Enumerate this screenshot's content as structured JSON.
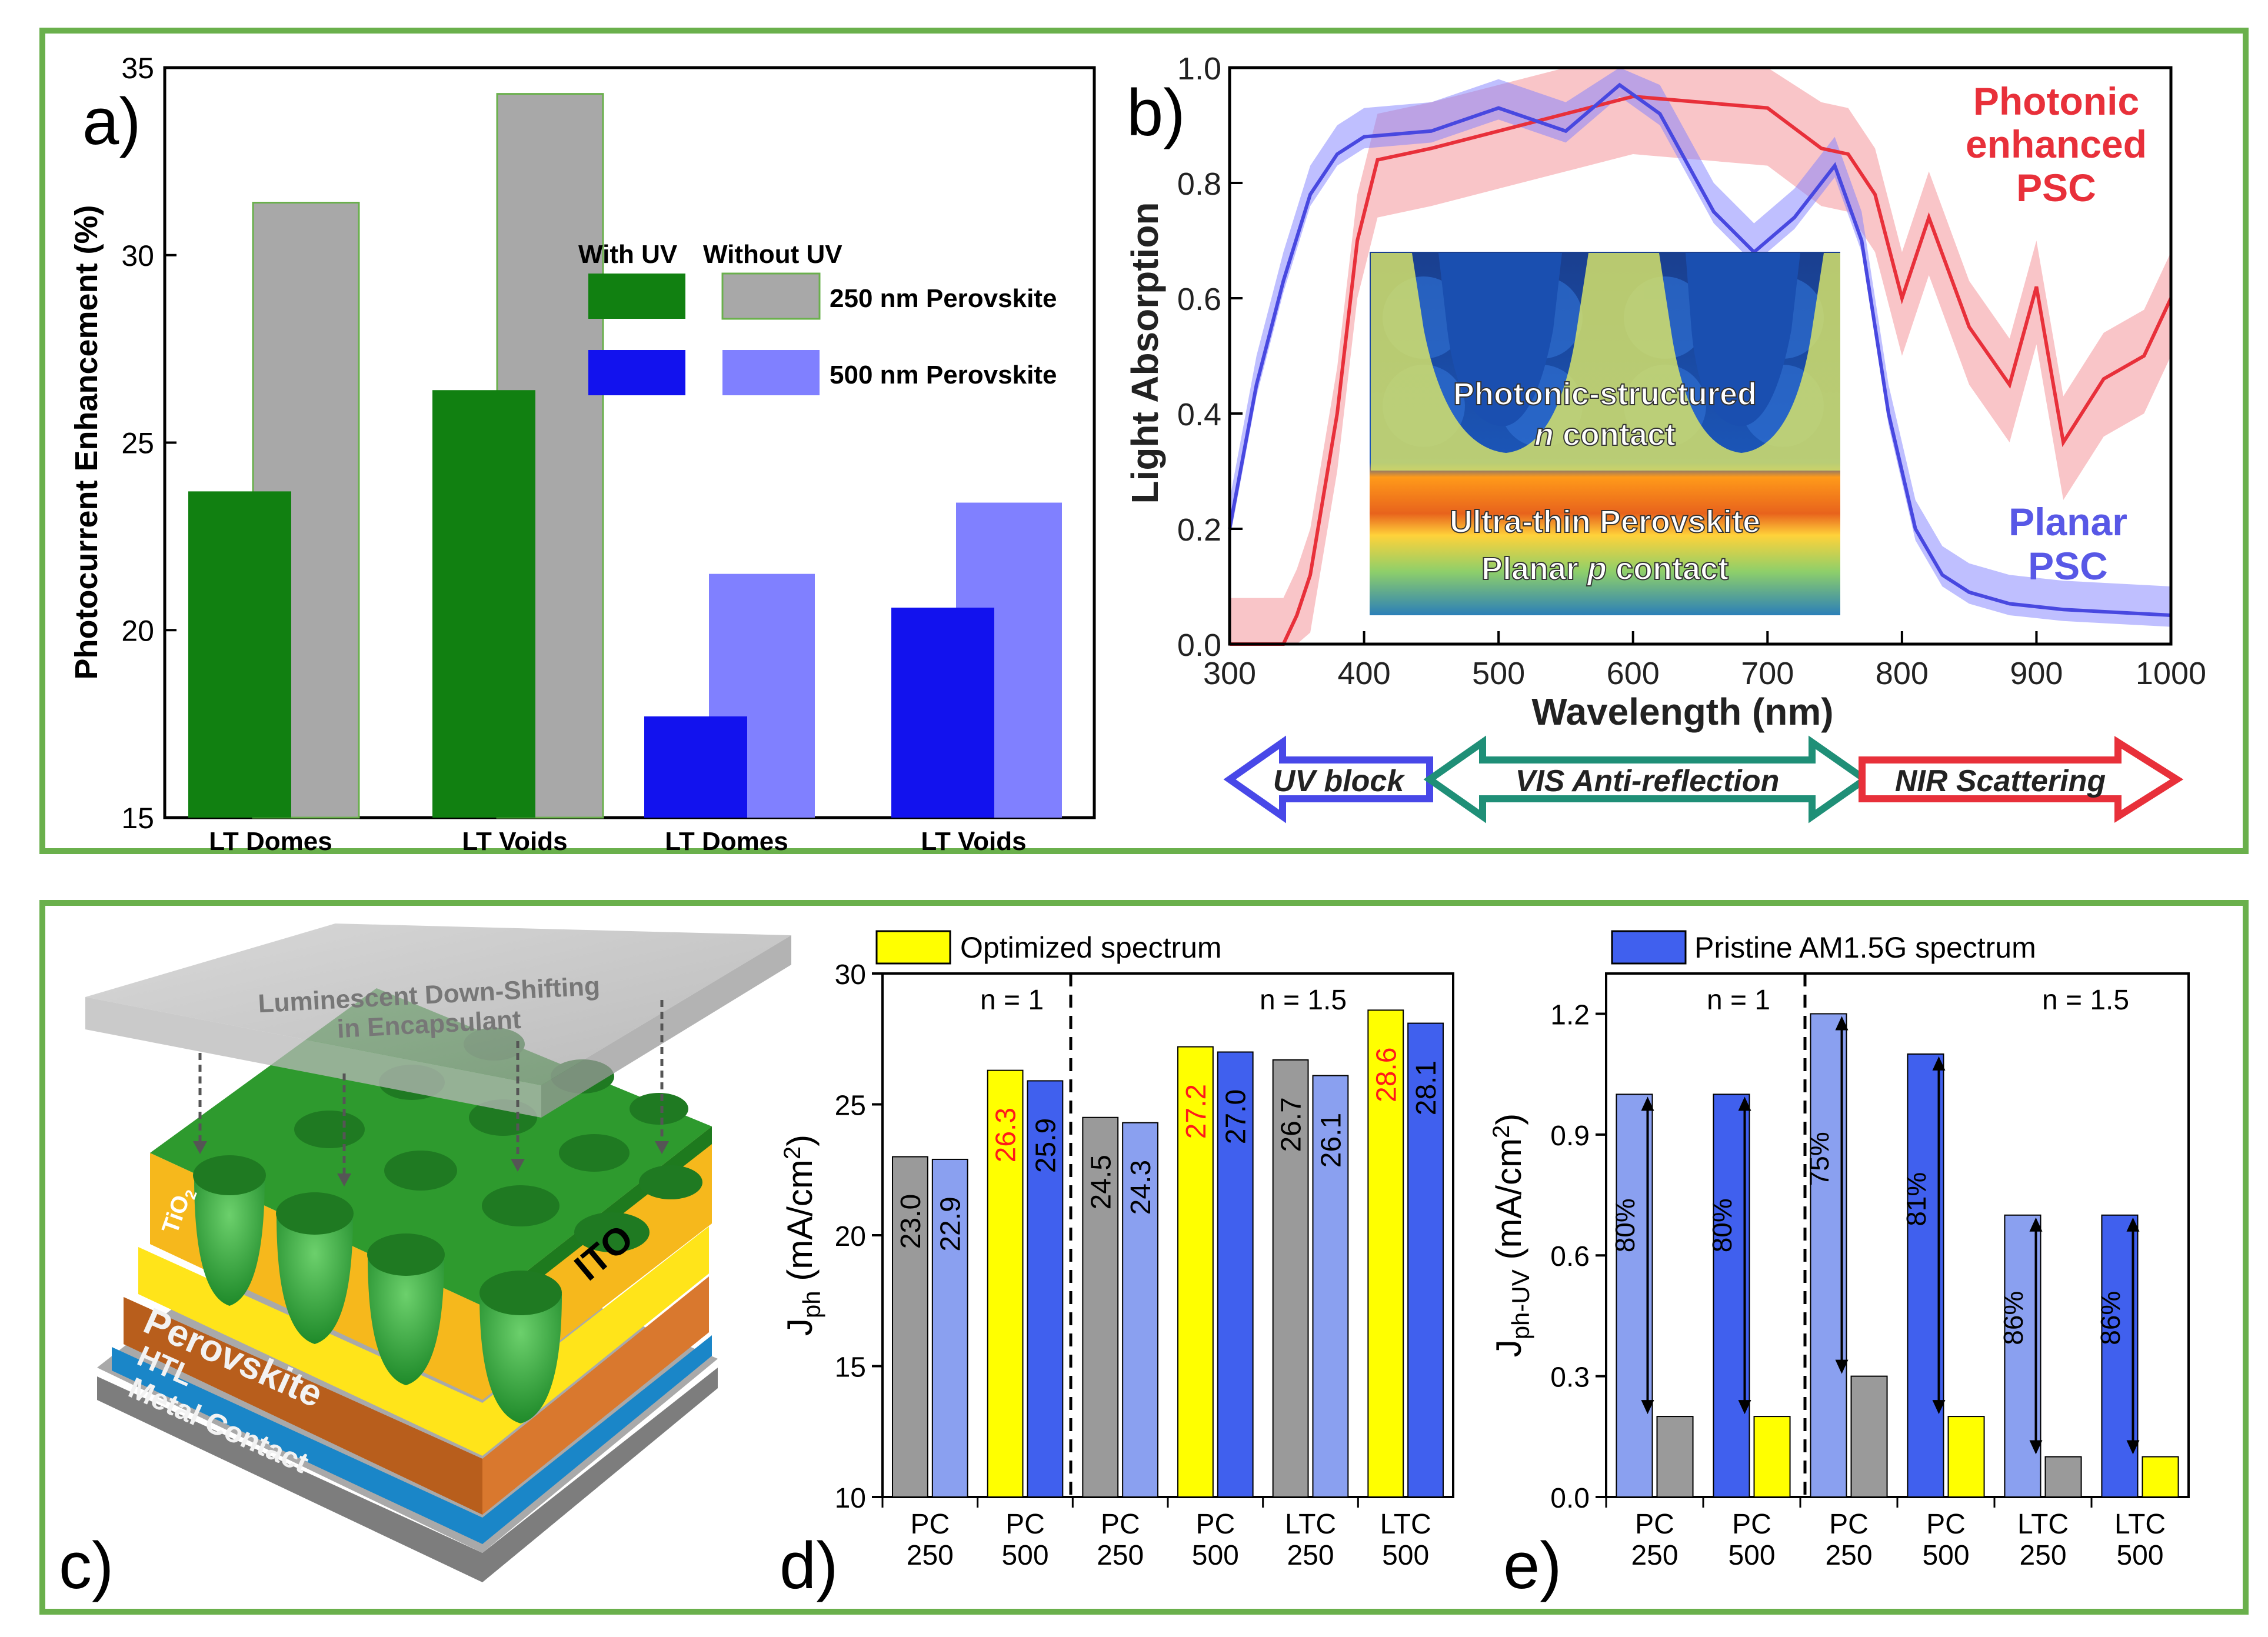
{
  "colors": {
    "frame": "#6ab04c",
    "green": "#118011",
    "gray": "#a8a8a8",
    "blue": "#1212ee",
    "lightblue": "#8080ff",
    "red": "#e8303a",
    "teal": "#1f8f77",
    "yellow": "#ffff00",
    "midblue": "#4060ee",
    "palegray": "#9a9a9a",
    "paleblue": "#8aa0f0"
  },
  "panel_labels": {
    "a": "a)",
    "b": "b)",
    "c": "c)",
    "d": "d)",
    "e": "e)"
  },
  "chart_data": [
    {
      "id": "a",
      "type": "bar",
      "ylabel": "Photocurrent Enhancement (%)",
      "ylim": [
        15,
        35
      ],
      "yticks": [
        "15",
        "20",
        "25",
        "30",
        "35"
      ],
      "categories": [
        "LT Domes",
        "LT Voids",
        "LT Domes",
        "LT Voids"
      ],
      "series": [
        {
          "name": "With UV",
          "values": [
            23.7,
            26.4,
            17.7,
            20.6
          ]
        },
        {
          "name": "Without UV",
          "values": [
            31.4,
            34.3,
            21.5,
            23.4
          ]
        }
      ],
      "legend": {
        "col1": "With UV",
        "col2": "Without UV",
        "row1": "250 nm Perovskite",
        "row2": "500 nm Perovskite",
        "position": "center-right"
      }
    },
    {
      "id": "b",
      "type": "line",
      "xlabel": "Wavelength (nm)",
      "ylabel": "Light Absorption",
      "xlim": [
        300,
        1000
      ],
      "ylim": [
        0,
        1
      ],
      "xticks": [
        "300",
        "400",
        "500",
        "600",
        "700",
        "800",
        "900",
        "1000"
      ],
      "yticks": [
        "0.0",
        "0.2",
        "0.4",
        "0.6",
        "0.8",
        "1.0"
      ],
      "series": [
        {
          "name": "Photonic enhanced PSC",
          "x": [
            300,
            320,
            340,
            350,
            360,
            380,
            395,
            410,
            450,
            500,
            550,
            600,
            650,
            700,
            740,
            760,
            780,
            800,
            820,
            850,
            880,
            900,
            920,
            950,
            980,
            1000
          ],
          "y": [
            0.0,
            0.0,
            0.0,
            0.05,
            0.12,
            0.4,
            0.7,
            0.84,
            0.86,
            0.89,
            0.92,
            0.95,
            0.94,
            0.93,
            0.86,
            0.85,
            0.78,
            0.6,
            0.74,
            0.55,
            0.45,
            0.62,
            0.35,
            0.46,
            0.5,
            0.6
          ]
        },
        {
          "name": "Planar PSC",
          "x": [
            300,
            320,
            340,
            360,
            380,
            400,
            450,
            500,
            550,
            590,
            620,
            660,
            690,
            720,
            750,
            770,
            790,
            810,
            830,
            850,
            880,
            920,
            960,
            1000
          ],
          "y": [
            0.2,
            0.45,
            0.63,
            0.78,
            0.85,
            0.88,
            0.89,
            0.93,
            0.89,
            0.97,
            0.92,
            0.75,
            0.68,
            0.74,
            0.83,
            0.7,
            0.4,
            0.2,
            0.12,
            0.09,
            0.07,
            0.06,
            0.055,
            0.05
          ]
        }
      ],
      "labels": {
        "photonic_line1": "Photonic",
        "photonic_line2": "enhanced",
        "photonic_line3": "PSC",
        "planar_line1": "Planar",
        "planar_line2": "PSC"
      },
      "inset": {
        "line1": "Photonic-structured",
        "line2_italic": "n",
        "line2_rest": " contact",
        "line3": "Ultra-thin Perovskite",
        "line4_pre": "Planar ",
        "line4_italic": "p",
        "line4_rest": " contact"
      },
      "arrows": [
        "UV block",
        "VIS Anti-reflection",
        "NIR Scattering"
      ]
    },
    {
      "id": "d",
      "type": "bar",
      "ylabel_main": "J",
      "ylabel_sub": "ph",
      "ylabel_unit_pre": " (mA/cm",
      "ylabel_unit_sup": "2",
      "ylabel_unit_post": ")",
      "ylim": [
        10,
        30
      ],
      "yticks": [
        "10",
        "15",
        "20",
        "25",
        "30"
      ],
      "legend": "Optimized spectrum",
      "regions": [
        "n = 1",
        "n = 1.5"
      ],
      "categories": [
        [
          "PC",
          "250"
        ],
        [
          "PC",
          "500"
        ],
        [
          "PC",
          "250"
        ],
        [
          "PC",
          "500"
        ],
        [
          "LTC",
          "250"
        ],
        [
          "LTC",
          "500"
        ]
      ],
      "series": [
        {
          "name": "Optimized spectrum",
          "values": [
            23.0,
            26.3,
            24.5,
            27.2,
            26.7,
            28.6
          ]
        },
        {
          "name": "Pristine spectrum",
          "values": [
            22.9,
            25.9,
            24.3,
            27.0,
            26.1,
            28.1
          ]
        }
      ],
      "value_labels": [
        [
          "23.0",
          "22.9"
        ],
        [
          "26.3",
          "25.9"
        ],
        [
          "24.5",
          "24.3"
        ],
        [
          "27.2",
          "27.0"
        ],
        [
          "26.7",
          "26.1"
        ],
        [
          "28.6",
          "28.1"
        ]
      ]
    },
    {
      "id": "e",
      "type": "bar",
      "ylabel_main": "J",
      "ylabel_sub": "ph-UV",
      "ylabel_unit_pre": " (mA/cm",
      "ylabel_unit_sup": "2",
      "ylabel_unit_post": ")",
      "ylim": [
        0,
        1.3
      ],
      "yticks": [
        "0.0",
        "0.3",
        "0.6",
        "0.9",
        "1.2"
      ],
      "legend": "Pristine AM1.5G spectrum",
      "regions": [
        "n = 1",
        "n = 1.5"
      ],
      "categories": [
        [
          "PC",
          "250"
        ],
        [
          "PC",
          "500"
        ],
        [
          "PC",
          "250"
        ],
        [
          "PC",
          "500"
        ],
        [
          "LTC",
          "250"
        ],
        [
          "LTC",
          "500"
        ]
      ],
      "series": [
        {
          "name": "Pristine AM1.5G spectrum",
          "values": [
            1.0,
            1.0,
            1.2,
            1.1,
            0.7,
            0.7
          ]
        },
        {
          "name": "Optimized spectrum",
          "values": [
            0.2,
            0.2,
            0.3,
            0.2,
            0.1,
            0.1
          ]
        }
      ],
      "percent_labels": [
        "80%",
        "80%",
        "75%",
        "81%",
        "86%",
        "86%"
      ]
    }
  ],
  "schematic": {
    "encapsulant_line1": "Luminescent Down-Shifting",
    "encapsulant_line2": "in Encapsulant",
    "tio2_main": "TiO",
    "tio2_sub": "2",
    "ito": "ITO",
    "perovskite": "Perovskite",
    "htl": "HTL",
    "metal": "Metal Contact"
  }
}
